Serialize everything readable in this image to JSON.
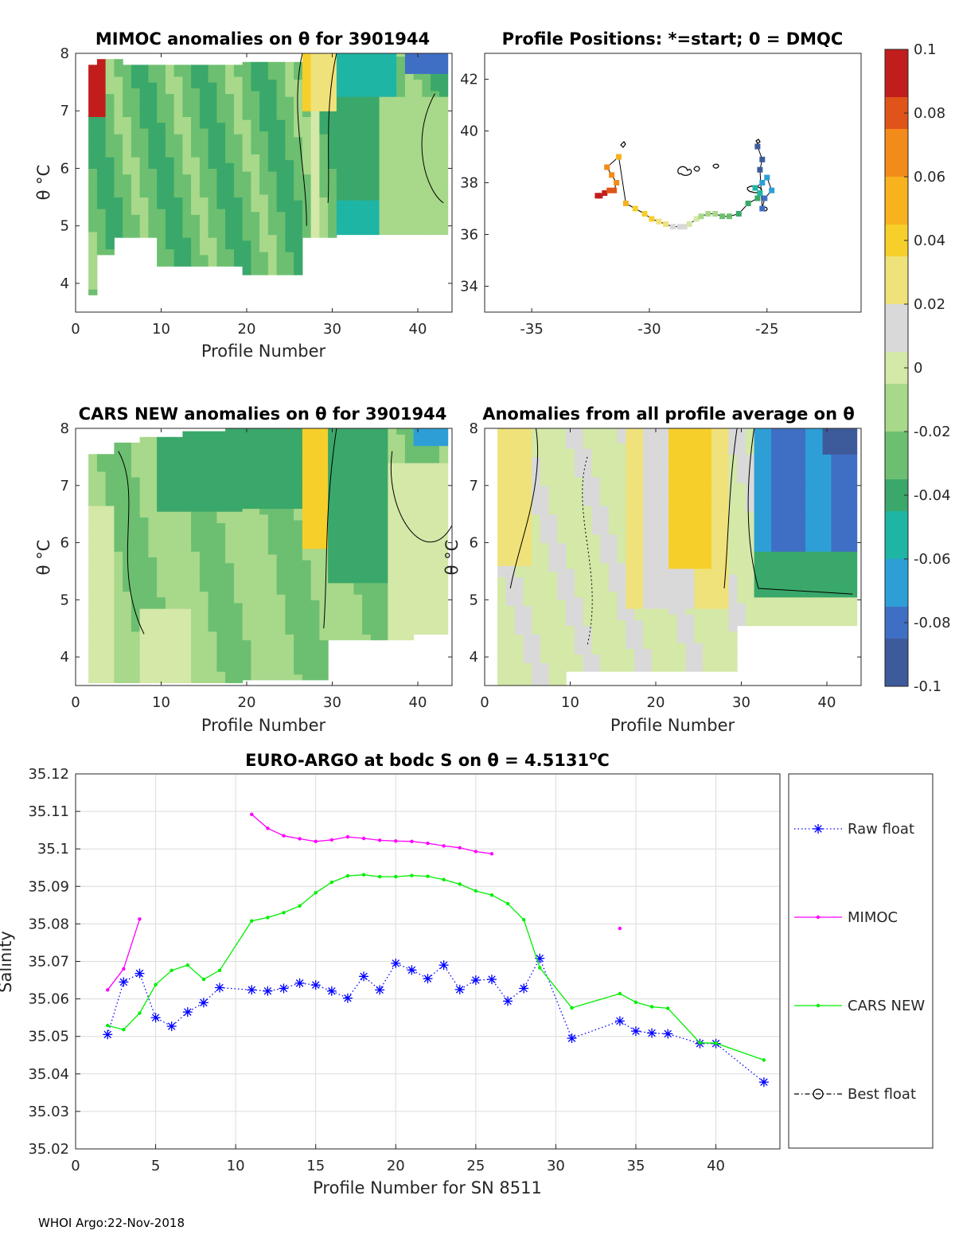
{
  "footer": "WHOI Argo:22-Nov-2018",
  "colorbar": {
    "ticks": [
      "0.1",
      "0.08",
      "0.06",
      "0.04",
      "0.02",
      "0",
      "-0.02",
      "-0.04",
      "-0.06",
      "-0.08",
      "-0.1"
    ],
    "values": [
      0.1,
      0.08,
      0.06,
      0.04,
      0.02,
      0,
      -0.02,
      -0.04,
      -0.06,
      -0.08,
      -0.1
    ],
    "colors": [
      "#3d5a9a",
      "#3f6fc4",
      "#2d9fd6",
      "#1fb5a4",
      "#3aa86a",
      "#6cbf70",
      "#a8d88a",
      "#d4e8a8",
      "#d9d9d9",
      "#f0e27a",
      "#f6cf2a",
      "#f7b21e",
      "#f38b1a",
      "#e0541a",
      "#c21d1d"
    ]
  },
  "panels": {
    "mimoc": {
      "title": "MIMOC anomalies on θ  for 3901944",
      "ylabel": "θ °C",
      "xlabel": "Profile Number",
      "xticks": [
        "0",
        "10",
        "20",
        "30",
        "40"
      ],
      "yticks": [
        "4",
        "5",
        "6",
        "7",
        "8"
      ]
    },
    "positions": {
      "title": "Profile Positions: *=start; 0 = DMQC",
      "xticks": [
        "-35",
        "-30",
        "-25"
      ],
      "yticks": [
        "34",
        "36",
        "38",
        "40",
        "42"
      ]
    },
    "cars": {
      "title": "CARS NEW anomalies on θ for 3901944",
      "ylabel": "θ °C",
      "xlabel": "Profile Number",
      "xticks": [
        "0",
        "10",
        "20",
        "30",
        "40"
      ],
      "yticks": [
        "4",
        "5",
        "6",
        "7",
        "8"
      ]
    },
    "avg": {
      "title": "Anomalies from all profile average on θ",
      "ylabel": "θ °C",
      "xlabel": "Profile Number",
      "xticks": [
        "0",
        "10",
        "20",
        "30",
        "40"
      ],
      "yticks": [
        "4",
        "5",
        "6",
        "7",
        "8"
      ]
    }
  },
  "chart_data": [
    {
      "type": "heatmap",
      "title": "MIMOC anomalies on θ  for 3901944",
      "xlabel": "Profile Number",
      "ylabel": "θ °C",
      "xlim": [
        0,
        44
      ],
      "ylim": [
        3.5,
        8
      ],
      "colorbar_range": [
        -0.1,
        0.1
      ]
    },
    {
      "type": "scatter",
      "title": "Profile Positions: *=start; 0 = DMQC",
      "xlim": [
        -37,
        -21
      ],
      "ylim": [
        33,
        43
      ],
      "lon": [
        -32.2,
        -32.1,
        -31.9,
        -31.7,
        -31.5,
        -31.4,
        -31.6,
        -31.8,
        -31.3,
        -31.0,
        -30.6,
        -30.2,
        -29.9,
        -29.6,
        -29.3,
        -29.0,
        -28.7,
        -28.5,
        -28.3,
        -28.0,
        -27.8,
        -27.5,
        -27.2,
        -26.9,
        -26.6,
        -26.2,
        -25.8,
        -25.4,
        -25.3,
        -25.5,
        -25.2,
        -25.0,
        -24.8,
        -25.1,
        -25.2,
        -25.3,
        -25.2,
        -25.4
      ],
      "lat": [
        37.5,
        37.5,
        37.6,
        37.7,
        37.7,
        38.0,
        38.3,
        38.6,
        39.0,
        37.2,
        37.0,
        36.8,
        36.6,
        36.5,
        36.4,
        36.3,
        36.3,
        36.3,
        36.4,
        36.6,
        36.7,
        36.8,
        36.8,
        36.7,
        36.7,
        36.8,
        37.2,
        37.4,
        37.6,
        37.8,
        38.0,
        38.2,
        37.7,
        37.4,
        37.0,
        38.5,
        38.9,
        39.4
      ],
      "colorbar_range": [
        1,
        43
      ]
    },
    {
      "type": "heatmap",
      "title": "CARS NEW anomalies on θ for 3901944",
      "xlabel": "Profile Number",
      "ylabel": "θ °C",
      "xlim": [
        0,
        44
      ],
      "ylim": [
        3.5,
        8
      ],
      "colorbar_range": [
        -0.1,
        0.1
      ]
    },
    {
      "type": "heatmap",
      "title": "Anomalies from all profile average on θ",
      "xlabel": "Profile Number",
      "ylabel": "θ °C",
      "xlim": [
        0,
        44
      ],
      "ylim": [
        3.5,
        8
      ],
      "colorbar_range": [
        -0.1,
        0.1
      ]
    },
    {
      "type": "line",
      "title": "EURO-ARGO at bodc S on θ = 4.5131°C",
      "xlabel": "Profile Number for SN 8511",
      "ylabel": "Salinity",
      "xlim": [
        0,
        44
      ],
      "ylim": [
        35.02,
        35.12
      ],
      "xticks": [
        "0",
        "5",
        "10",
        "15",
        "20",
        "25",
        "30",
        "35",
        "40"
      ],
      "yticks": [
        "35.02",
        "35.03",
        "35.04",
        "35.05",
        "35.06",
        "35.07",
        "35.08",
        "35.09",
        "35.1",
        "35.11",
        "35.12"
      ],
      "legend": [
        "Raw float",
        "MIMOC",
        "CARS NEW",
        "Best float"
      ],
      "legend_position": "outside-right",
      "series": [
        {
          "name": "Raw float",
          "color": "#0000ff",
          "style": "dotted",
          "marker": "asterisk",
          "x": [
            2,
            3,
            4,
            5,
            6,
            7,
            8,
            9,
            11,
            12,
            13,
            14,
            15,
            16,
            17,
            18,
            19,
            20,
            21,
            22,
            23,
            24,
            25,
            26,
            27,
            28,
            29,
            31,
            34,
            35,
            36,
            37,
            39,
            40,
            43
          ],
          "y": [
            35.0505,
            35.0645,
            35.0668,
            35.055,
            35.0527,
            35.0565,
            35.059,
            35.063,
            35.0624,
            35.0621,
            35.0628,
            35.0642,
            35.0637,
            35.0621,
            35.0602,
            35.066,
            35.0624,
            35.0695,
            35.0677,
            35.0654,
            35.069,
            35.0625,
            35.065,
            35.0652,
            35.0594,
            35.0628,
            35.0708,
            35.0495,
            35.0541,
            35.0514,
            35.0509,
            35.0507,
            35.0481,
            35.0481,
            35.0378
          ]
        },
        {
          "name": "MIMOC",
          "color": "#ff00ff",
          "style": "solid",
          "marker": "dot",
          "segments": [
            {
              "x": [
                2,
                3,
                4
              ],
              "y": [
                35.0624,
                35.068,
                35.0813
              ]
            },
            {
              "x": [
                11,
                12,
                13,
                14,
                15,
                16,
                17,
                18,
                19,
                20,
                21,
                22,
                23,
                24,
                25,
                26
              ],
              "y": [
                35.1092,
                35.1055,
                35.1035,
                35.1027,
                35.102,
                35.1024,
                35.1032,
                35.1028,
                35.1023,
                35.1021,
                35.102,
                35.1015,
                35.1008,
                35.1003,
                35.0993,
                35.0987
              ]
            },
            {
              "x": [
                34
              ],
              "y": [
                35.0788
              ]
            }
          ]
        },
        {
          "name": "CARS NEW",
          "color": "#00ee00",
          "style": "solid",
          "marker": "dot",
          "x": [
            2,
            3,
            4,
            5,
            6,
            7,
            8,
            9,
            11,
            12,
            13,
            14,
            15,
            16,
            17,
            18,
            19,
            20,
            21,
            22,
            23,
            24,
            25,
            26,
            27,
            28,
            29,
            31,
            34,
            35,
            36,
            37,
            39,
            40,
            43
          ],
          "y": [
            35.0529,
            35.0518,
            35.0562,
            35.0638,
            35.0676,
            35.069,
            35.0652,
            35.0676,
            35.0808,
            35.0817,
            35.083,
            35.0848,
            35.0883,
            35.0911,
            35.0928,
            35.0931,
            35.0926,
            35.0926,
            35.0929,
            35.0927,
            35.0918,
            35.0906,
            35.0888,
            35.0877,
            35.0854,
            35.0811,
            35.0683,
            35.0576,
            35.0614,
            35.0591,
            35.0579,
            35.0575,
            35.0483,
            35.0482,
            35.0437
          ]
        },
        {
          "name": "Best float",
          "color": "#000000",
          "style": "dashdot",
          "marker": "circle",
          "x": [],
          "y": []
        }
      ]
    }
  ]
}
